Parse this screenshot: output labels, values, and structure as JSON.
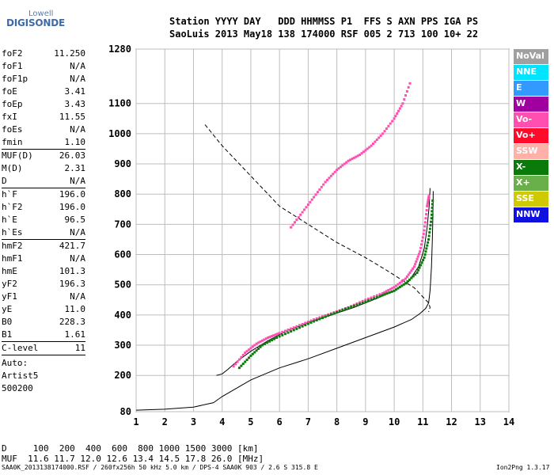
{
  "logo": {
    "top": "Lowell",
    "main": "DIGISONDE"
  },
  "header": {
    "row1": "Station YYYY DAY   DDD HHMMSS P1  FFS S AXN PPS IGA PS",
    "row2": "SaoLuis 2013 May18 138 174000 RSF 005 2 713 100 10+ 22"
  },
  "params": [
    {
      "k": "foF2",
      "v": "11.250"
    },
    {
      "k": "foF1",
      "v": "N/A"
    },
    {
      "k": "foF1p",
      "v": "N/A"
    },
    {
      "k": "foE",
      "v": "3.41"
    },
    {
      "k": "foEp",
      "v": "3.43"
    },
    {
      "k": "fxI",
      "v": "11.55"
    },
    {
      "k": "foEs",
      "v": "N/A"
    },
    {
      "k": "fmin",
      "v": "1.10"
    },
    {
      "k": "MUF(D)",
      "v": "26.03"
    },
    {
      "k": "M(D)",
      "v": "2.31"
    },
    {
      "k": "D",
      "v": "N/A"
    },
    {
      "k": "h`F",
      "v": "196.0"
    },
    {
      "k": "h`F2",
      "v": "196.0"
    },
    {
      "k": "h`E",
      "v": "96.5"
    },
    {
      "k": "h`Es",
      "v": "N/A"
    },
    {
      "k": "hmF2",
      "v": "421.7"
    },
    {
      "k": "hmF1",
      "v": "N/A"
    },
    {
      "k": "hmE",
      "v": "101.3"
    },
    {
      "k": "yF2",
      "v": "196.3"
    },
    {
      "k": "yF1",
      "v": "N/A"
    },
    {
      "k": "yE",
      "v": "11.0"
    },
    {
      "k": "B0",
      "v": "228.3"
    },
    {
      "k": "B1",
      "v": "1.61"
    },
    {
      "k": "C-level",
      "v": "11"
    }
  ],
  "auto": {
    "line1": "Auto:",
    "line2": "Artist5",
    "line3": "500200"
  },
  "legend": [
    {
      "label": "NoVal",
      "color": "#a0a0a0"
    },
    {
      "label": "NNE",
      "color": "#00e5ff"
    },
    {
      "label": "E",
      "color": "#3399ff"
    },
    {
      "label": "W",
      "color": "#a000a0"
    },
    {
      "label": "Vo-",
      "color": "#ff4fb0"
    },
    {
      "label": "Vo+",
      "color": "#ff0a2a"
    },
    {
      "label": "SSW",
      "color": "#ffb0a8"
    },
    {
      "label": "X-",
      "color": "#0a7a0a"
    },
    {
      "label": "X+",
      "color": "#6ab04a"
    },
    {
      "label": "SSE",
      "color": "#d0c800"
    },
    {
      "label": "NNW",
      "color": "#1010e0"
    }
  ],
  "muf_table": {
    "d_row": "D     100  200  400  600  800 1000 1500 3000 [km]",
    "muf_row": "MUF  11.6 11.7 12.0 12.6 13.4 14.5 17.8 26.0 [MHz]"
  },
  "footer": {
    "left": "SAA0K_2013138174000.RSF / 260fx256h 50 kHz 5.0 km / DPS-4 SAA0K 903 / 2.6 S 315.8 E",
    "right": "Ion2Png 1.3.17"
  },
  "chart_data": {
    "type": "scatter",
    "xlim": [
      1,
      14
    ],
    "ylim": [
      80,
      1280
    ],
    "x_ticks": [
      1,
      2,
      3,
      4,
      5,
      6,
      7,
      8,
      9,
      10,
      11,
      12,
      13,
      14
    ],
    "y_ticks": [
      80,
      200,
      300,
      400,
      500,
      600,
      700,
      800,
      900,
      1000,
      1100,
      1280
    ],
    "grid": true,
    "legend_position": "right",
    "series": [
      {
        "color": "#ff4fb0",
        "values": [
          [
            4.4,
            230
          ],
          [
            4.8,
            275
          ],
          [
            5.2,
            305
          ],
          [
            5.6,
            325
          ],
          [
            6.0,
            340
          ],
          [
            6.6,
            362
          ],
          [
            7.2,
            385
          ],
          [
            7.8,
            405
          ],
          [
            8.4,
            425
          ],
          [
            9.0,
            450
          ],
          [
            9.6,
            472
          ],
          [
            10.0,
            492
          ],
          [
            10.4,
            520
          ],
          [
            10.7,
            560
          ],
          [
            10.9,
            610
          ],
          [
            11.05,
            680
          ],
          [
            11.15,
            760
          ],
          [
            11.22,
            800
          ]
        ]
      },
      {
        "color": "#0a7a0a",
        "values": [
          [
            4.6,
            225
          ],
          [
            5.0,
            265
          ],
          [
            5.4,
            300
          ],
          [
            5.9,
            325
          ],
          [
            6.5,
            350
          ],
          [
            7.1,
            375
          ],
          [
            7.7,
            398
          ],
          [
            8.3,
            420
          ],
          [
            8.9,
            440
          ],
          [
            9.5,
            462
          ],
          [
            10.0,
            480
          ],
          [
            10.4,
            505
          ],
          [
            10.8,
            540
          ],
          [
            11.05,
            590
          ],
          [
            11.2,
            650
          ],
          [
            11.3,
            720
          ],
          [
            11.35,
            790
          ]
        ]
      },
      {
        "color": "#ff4fb0",
        "values": [
          [
            6.4,
            690
          ],
          [
            6.8,
            740
          ],
          [
            7.2,
            790
          ],
          [
            7.6,
            840
          ],
          [
            8.0,
            880
          ],
          [
            8.4,
            910
          ],
          [
            8.8,
            930
          ],
          [
            9.2,
            960
          ],
          [
            9.6,
            1000
          ],
          [
            10.0,
            1050
          ],
          [
            10.3,
            1100
          ],
          [
            10.6,
            1180
          ]
        ]
      }
    ],
    "curves": [
      {
        "style": "solid",
        "values": [
          [
            1.0,
            85
          ],
          [
            2.0,
            88
          ],
          [
            3.0,
            95
          ],
          [
            3.7,
            110
          ],
          [
            4.0,
            130
          ],
          [
            5.0,
            185
          ],
          [
            6.0,
            225
          ],
          [
            7.0,
            255
          ],
          [
            8.0,
            290
          ],
          [
            9.0,
            325
          ],
          [
            10.0,
            360
          ],
          [
            10.6,
            385
          ],
          [
            10.9,
            405
          ],
          [
            11.1,
            422
          ],
          [
            11.2,
            440
          ],
          [
            11.25,
            480
          ],
          [
            11.3,
            560
          ],
          [
            11.33,
            650
          ],
          [
            11.35,
            730
          ],
          [
            11.36,
            810
          ]
        ]
      },
      {
        "style": "solid",
        "values": [
          [
            3.8,
            200
          ],
          [
            4.0,
            205
          ],
          [
            4.2,
            220
          ],
          [
            4.5,
            245
          ],
          [
            5.0,
            280
          ],
          [
            5.6,
            315
          ],
          [
            6.2,
            345
          ],
          [
            7.0,
            375
          ],
          [
            7.8,
            400
          ],
          [
            8.6,
            425
          ],
          [
            9.4,
            455
          ],
          [
            10.0,
            480
          ],
          [
            10.5,
            510
          ],
          [
            10.85,
            560
          ],
          [
            11.05,
            620
          ],
          [
            11.15,
            690
          ],
          [
            11.22,
            760
          ],
          [
            11.25,
            820
          ]
        ]
      },
      {
        "style": "dashed",
        "values": [
          [
            3.4,
            1030
          ],
          [
            4.0,
            960
          ],
          [
            5.0,
            860
          ],
          [
            6.0,
            760
          ],
          [
            7.0,
            700
          ],
          [
            8.0,
            640
          ],
          [
            9.0,
            590
          ],
          [
            9.7,
            550
          ],
          [
            10.2,
            520
          ],
          [
            10.7,
            490
          ],
          [
            11.0,
            460
          ],
          [
            11.2,
            440
          ],
          [
            11.25,
            425
          ],
          [
            11.2,
            410
          ]
        ]
      }
    ]
  }
}
